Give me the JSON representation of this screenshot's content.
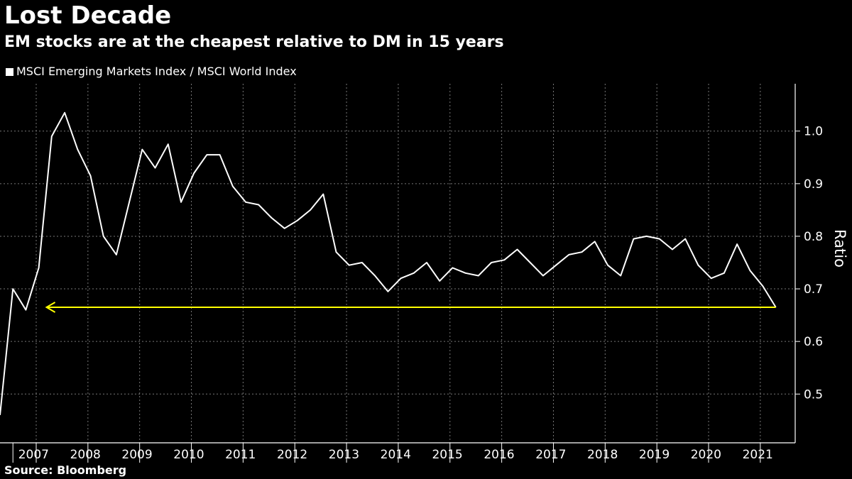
{
  "chart_data": {
    "type": "line",
    "title": "Lost Decade",
    "subtitle": "EM stocks are at the cheapest relative to DM in 15 years",
    "ylabel": "Ratio",
    "xlabel": "",
    "ylim": [
      0.41,
      1.09
    ],
    "yticks": [
      0.5,
      0.6,
      0.7,
      0.8,
      0.9,
      1.0
    ],
    "ytick_labels": [
      "0.5",
      "0.6",
      "0.7",
      "0.8",
      "0.9",
      "1.0"
    ],
    "x_range": [
      2006.3,
      2021.4
    ],
    "year_labels": [
      "2007",
      "2008",
      "2009",
      "2010",
      "2011",
      "2012",
      "2013",
      "2014",
      "2015",
      "2016",
      "2017",
      "2018",
      "2019",
      "2020",
      "2021"
    ],
    "grid": true,
    "legend_position": "top-left",
    "series": [
      {
        "name": "MSCI Emerging Markets Index / MSCI World Index",
        "color": "#ffffff",
        "x": [
          2006.3,
          2006.55,
          2006.8,
          2007.05,
          2007.3,
          2007.55,
          2007.8,
          2008.05,
          2008.3,
          2008.55,
          2008.8,
          2009.05,
          2009.3,
          2009.55,
          2009.8,
          2010.05,
          2010.3,
          2010.55,
          2010.8,
          2011.05,
          2011.3,
          2011.55,
          2011.8,
          2012.05,
          2012.3,
          2012.55,
          2012.8,
          2013.05,
          2013.3,
          2013.55,
          2013.8,
          2014.05,
          2014.3,
          2014.55,
          2014.8,
          2015.05,
          2015.3,
          2015.55,
          2015.8,
          2016.05,
          2016.3,
          2016.55,
          2016.8,
          2017.05,
          2017.3,
          2017.55,
          2017.8,
          2018.05,
          2018.3,
          2018.55,
          2018.8,
          2019.05,
          2019.3,
          2019.55,
          2019.8,
          2020.05,
          2020.3,
          2020.55,
          2020.8,
          2021.05,
          2021.3
        ],
        "values": [
          0.46,
          0.7,
          0.66,
          0.74,
          0.99,
          1.035,
          0.965,
          0.915,
          0.8,
          0.765,
          0.865,
          0.965,
          0.93,
          0.975,
          0.865,
          0.92,
          0.955,
          0.955,
          0.895,
          0.865,
          0.86,
          0.835,
          0.815,
          0.83,
          0.85,
          0.88,
          0.77,
          0.745,
          0.75,
          0.725,
          0.695,
          0.72,
          0.73,
          0.75,
          0.715,
          0.74,
          0.73,
          0.725,
          0.75,
          0.755,
          0.775,
          0.75,
          0.725,
          0.745,
          0.765,
          0.77,
          0.79,
          0.745,
          0.725,
          0.795,
          0.8,
          0.795,
          0.775,
          0.795,
          0.745,
          0.72,
          0.73,
          0.785,
          0.735,
          0.705,
          0.665
        ]
      }
    ],
    "annotations": [
      {
        "type": "arrow",
        "color": "#ffff00",
        "y": 0.665,
        "x_start": 2021.3,
        "x_end": 2007.2
      }
    ],
    "source": "Source: Bloomberg"
  }
}
